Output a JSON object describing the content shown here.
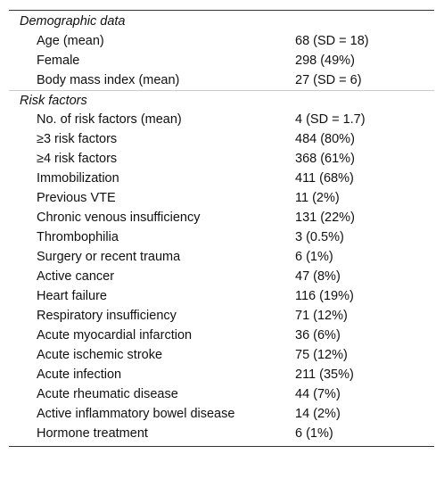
{
  "sections": [
    {
      "title": "Demographic data",
      "rows": [
        [
          "Age (mean)",
          "68 (SD = 18)"
        ],
        [
          "Female",
          "298 (49%)"
        ],
        [
          "Body mass index (mean)",
          "27 (SD = 6)"
        ]
      ]
    },
    {
      "title": "Risk factors",
      "rows": [
        [
          "No. of risk factors (mean)",
          "4 (SD = 1.7)"
        ],
        [
          "≥3 risk factors",
          "484 (80%)"
        ],
        [
          "≥4 risk factors",
          "368 (61%)"
        ],
        [
          "Immobilization",
          "411 (68%)"
        ],
        [
          "Previous VTE",
          "11 (2%)"
        ],
        [
          "Chronic venous insufficiency",
          "131 (22%)"
        ],
        [
          "Thrombophilia",
          "3 (0.5%)"
        ],
        [
          "Surgery or recent trauma",
          "6 (1%)"
        ],
        [
          "Active cancer",
          "47 (8%)"
        ],
        [
          "Heart failure",
          "116 (19%)"
        ],
        [
          "Respiratory insufficiency",
          "71 (12%)"
        ],
        [
          "Acute myocardial infarction",
          "36 (6%)"
        ],
        [
          "Acute ischemic stroke",
          "75 (12%)"
        ],
        [
          "Acute infection",
          "211 (35%)"
        ],
        [
          "Acute rheumatic disease",
          "44 (7%)"
        ],
        [
          "Active inflammatory bowel disease",
          "14 (2%)"
        ],
        [
          "Hormone treatment",
          "6 (1%)"
        ]
      ]
    }
  ]
}
